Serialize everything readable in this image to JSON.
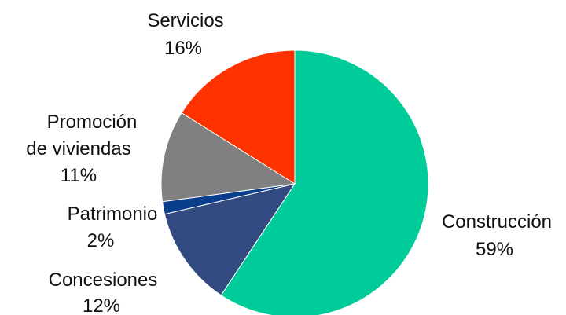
{
  "chart_data": {
    "type": "pie",
    "title": "",
    "slices": [
      {
        "label": "Construcción",
        "value": 59,
        "value_label": "59%",
        "color": "#00CC99"
      },
      {
        "label": "Concesiones",
        "value": 12,
        "value_label": "12%",
        "color": "#334A80"
      },
      {
        "label": "Patrimonio",
        "value": 1.5,
        "value_label": "2%",
        "color": "#0A3E8C"
      },
      {
        "label": "Promoción de viviendas",
        "label_lines": [
          "Promoción",
          "de viviendas"
        ],
        "value": 11,
        "value_label": "11%",
        "color": "#808080"
      },
      {
        "label": "Servicios",
        "value": 16,
        "value_label": "16%",
        "color": "#FF3300"
      }
    ]
  }
}
